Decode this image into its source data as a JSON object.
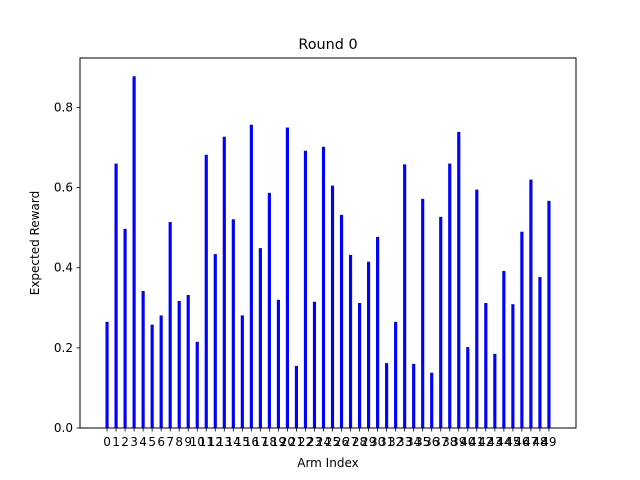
{
  "chart_data": {
    "type": "bar",
    "title": "Round 0",
    "xlabel": "Arm Index",
    "ylabel": "Expected Reward",
    "bar_color": "#0000ff",
    "ylim": [
      0,
      0.9
    ],
    "yticks": [
      0.0,
      0.2,
      0.4,
      0.6,
      0.8
    ],
    "ytick_labels": [
      "0.0",
      "0.2",
      "0.4",
      "0.6",
      "0.8"
    ],
    "grid": false,
    "categories": [
      "0",
      "1",
      "2",
      "3",
      "4",
      "5",
      "6",
      "7",
      "8",
      "9",
      "10",
      "11",
      "12",
      "13",
      "14",
      "15",
      "16",
      "17",
      "18",
      "19",
      "20",
      "21",
      "22",
      "23",
      "24",
      "25",
      "26",
      "27",
      "28",
      "29",
      "30",
      "31",
      "32",
      "33",
      "34",
      "35",
      "36",
      "37",
      "38",
      "39",
      "40",
      "41",
      "42",
      "43",
      "44",
      "45",
      "46",
      "47",
      "48",
      "49"
    ],
    "values": [
      0.265,
      0.66,
      0.497,
      0.878,
      0.342,
      0.258,
      0.281,
      0.514,
      0.317,
      0.332,
      0.215,
      0.682,
      0.434,
      0.727,
      0.521,
      0.281,
      0.757,
      0.449,
      0.587,
      0.32,
      0.75,
      0.155,
      0.692,
      0.315,
      0.702,
      0.605,
      0.532,
      0.432,
      0.312,
      0.415,
      0.477,
      0.162,
      0.265,
      0.658,
      0.16,
      0.572,
      0.138,
      0.527,
      0.66,
      0.739,
      0.202,
      0.595,
      0.312,
      0.185,
      0.392,
      0.309,
      0.49,
      0.62,
      0.377,
      0.567
    ]
  }
}
